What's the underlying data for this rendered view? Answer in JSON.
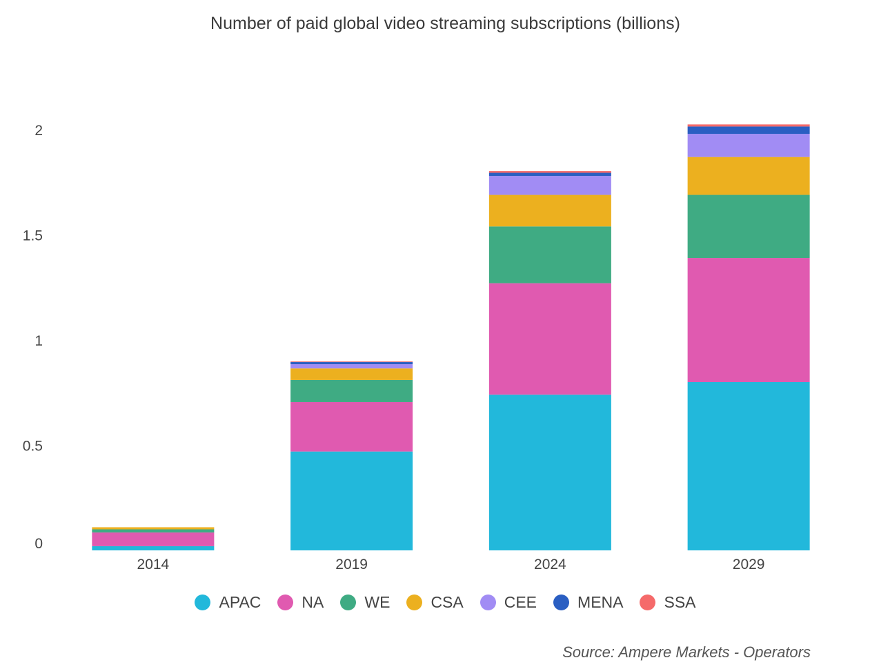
{
  "chart_data": {
    "type": "bar",
    "stacked": true,
    "title": "Number of paid global video streaming subscriptions (billions)",
    "xlabel": "",
    "ylabel": "",
    "ylim": [
      0,
      2
    ],
    "yticks": [
      "0",
      "0.5",
      "1",
      "1.5",
      "2"
    ],
    "ytick_values": [
      0,
      0.5,
      1,
      1.5,
      2
    ],
    "categories": [
      "2014",
      "2019",
      "2024",
      "2029"
    ],
    "legend_position": "bottom",
    "series": [
      {
        "name": "APAC",
        "color": "#22b8db",
        "values": [
          0.02,
          0.47,
          0.74,
          0.8
        ]
      },
      {
        "name": "NA",
        "color": "#e05ab0",
        "values": [
          0.065,
          0.235,
          0.53,
          0.59
        ]
      },
      {
        "name": "WE",
        "color": "#3fab83",
        "values": [
          0.015,
          0.105,
          0.27,
          0.3
        ]
      },
      {
        "name": "CSA",
        "color": "#ecb01f",
        "values": [
          0.01,
          0.055,
          0.15,
          0.18
        ]
      },
      {
        "name": "CEE",
        "color": "#a18cf4",
        "values": [
          0.0,
          0.02,
          0.09,
          0.11
        ]
      },
      {
        "name": "MENA",
        "color": "#2a5ec2",
        "values": [
          0.0,
          0.01,
          0.015,
          0.035
        ]
      },
      {
        "name": "SSA",
        "color": "#f56a6a",
        "values": [
          0.0,
          0.003,
          0.008,
          0.01
        ]
      }
    ]
  },
  "source": "Source: Ampere Markets - Operators"
}
